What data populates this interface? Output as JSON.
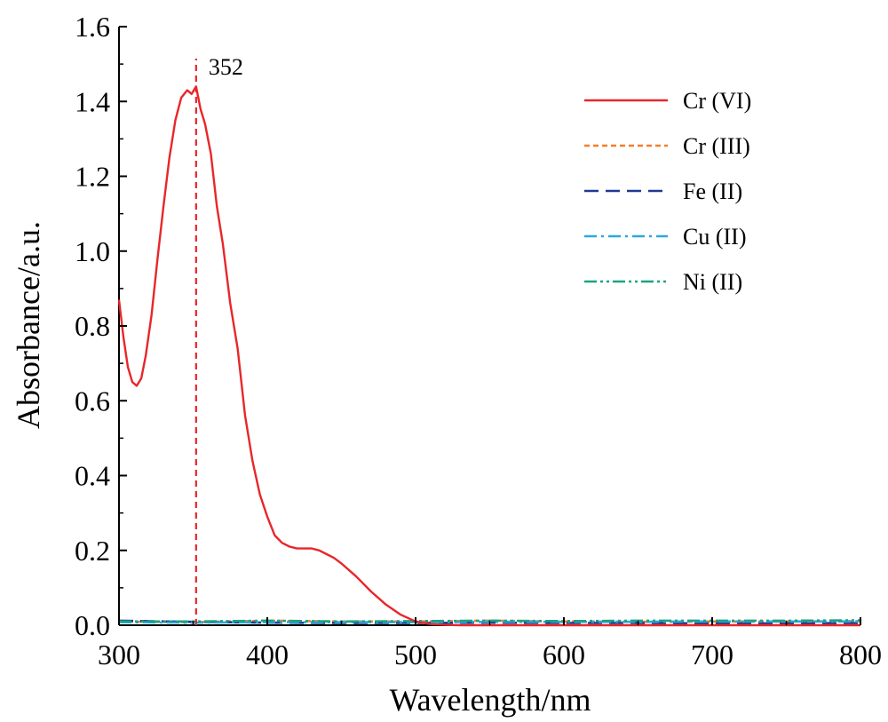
{
  "chart_data": {
    "type": "line",
    "title": "",
    "xlabel": "Wavelength/nm",
    "ylabel": "Absorbance/a.u.",
    "xlim": [
      300,
      800
    ],
    "ylim": [
      0.0,
      1.6
    ],
    "xticks": [
      300,
      400,
      500,
      600,
      700,
      800
    ],
    "xtick_labels": [
      "300",
      "400",
      "500",
      "600",
      "700",
      "800"
    ],
    "yticks": [
      0.0,
      0.2,
      0.4,
      0.6,
      0.8,
      1.0,
      1.2,
      1.4,
      1.6
    ],
    "ytick_labels": [
      "0.0",
      "0.2",
      "0.4",
      "0.6",
      "0.8",
      "1.0",
      "1.2",
      "1.4",
      "1.6"
    ],
    "grid": false,
    "legend_position": "top-right",
    "annotation": {
      "x": 352,
      "label": "352",
      "style": "dashed-vertical",
      "color": "#e8262a"
    },
    "series": [
      {
        "name": "Cr (VI)",
        "color": "#e8262a",
        "dash": "solid",
        "x": [
          300,
          303,
          306,
          309,
          312,
          315,
          318,
          322,
          326,
          330,
          334,
          338,
          342,
          346,
          349,
          352,
          355,
          358,
          362,
          366,
          370,
          375,
          380,
          385,
          390,
          395,
          400,
          405,
          410,
          415,
          420,
          425,
          430,
          435,
          440,
          445,
          450,
          460,
          470,
          480,
          490,
          500,
          510,
          520,
          530,
          550,
          600,
          650,
          700,
          750,
          800
        ],
        "y": [
          0.87,
          0.77,
          0.69,
          0.65,
          0.64,
          0.66,
          0.72,
          0.83,
          0.98,
          1.12,
          1.25,
          1.35,
          1.41,
          1.43,
          1.42,
          1.44,
          1.38,
          1.34,
          1.26,
          1.12,
          1.02,
          0.86,
          0.74,
          0.56,
          0.44,
          0.35,
          0.29,
          0.24,
          0.22,
          0.21,
          0.205,
          0.205,
          0.205,
          0.2,
          0.19,
          0.18,
          0.165,
          0.13,
          0.09,
          0.055,
          0.028,
          0.01,
          0.003,
          0.001,
          0.0,
          0.0,
          0.0,
          0.0,
          0.0,
          0.0,
          0.0
        ]
      },
      {
        "name": "Cr (III)",
        "color": "#f07f2a",
        "dash": "short-dash",
        "x": [
          300,
          350,
          400,
          450,
          500,
          550,
          600,
          650,
          700,
          750,
          800
        ],
        "y": [
          0.01,
          0.008,
          0.012,
          0.01,
          0.01,
          0.012,
          0.01,
          0.009,
          0.01,
          0.01,
          0.011
        ]
      },
      {
        "name": "Fe (II)",
        "color": "#1f3a93",
        "dash": "long-dash",
        "x": [
          300,
          350,
          400,
          450,
          500,
          550,
          600,
          650,
          700,
          750,
          800
        ],
        "y": [
          0.012,
          0.009,
          0.007,
          0.006,
          0.006,
          0.007,
          0.006,
          0.006,
          0.005,
          0.005,
          0.006
        ]
      },
      {
        "name": "Cu (II)",
        "color": "#29a9e0",
        "dash": "dash-dot",
        "x": [
          300,
          350,
          400,
          450,
          500,
          550,
          600,
          650,
          700,
          750,
          800
        ],
        "y": [
          0.008,
          0.007,
          0.008,
          0.008,
          0.008,
          0.009,
          0.009,
          0.009,
          0.01,
          0.01,
          0.01
        ]
      },
      {
        "name": "Ni (II)",
        "color": "#1aa382",
        "dash": "dash-dot-dot",
        "x": [
          300,
          350,
          400,
          450,
          500,
          550,
          600,
          650,
          700,
          750,
          800
        ],
        "y": [
          0.01,
          0.01,
          0.012,
          0.01,
          0.011,
          0.012,
          0.011,
          0.012,
          0.012,
          0.012,
          0.013
        ]
      }
    ]
  }
}
